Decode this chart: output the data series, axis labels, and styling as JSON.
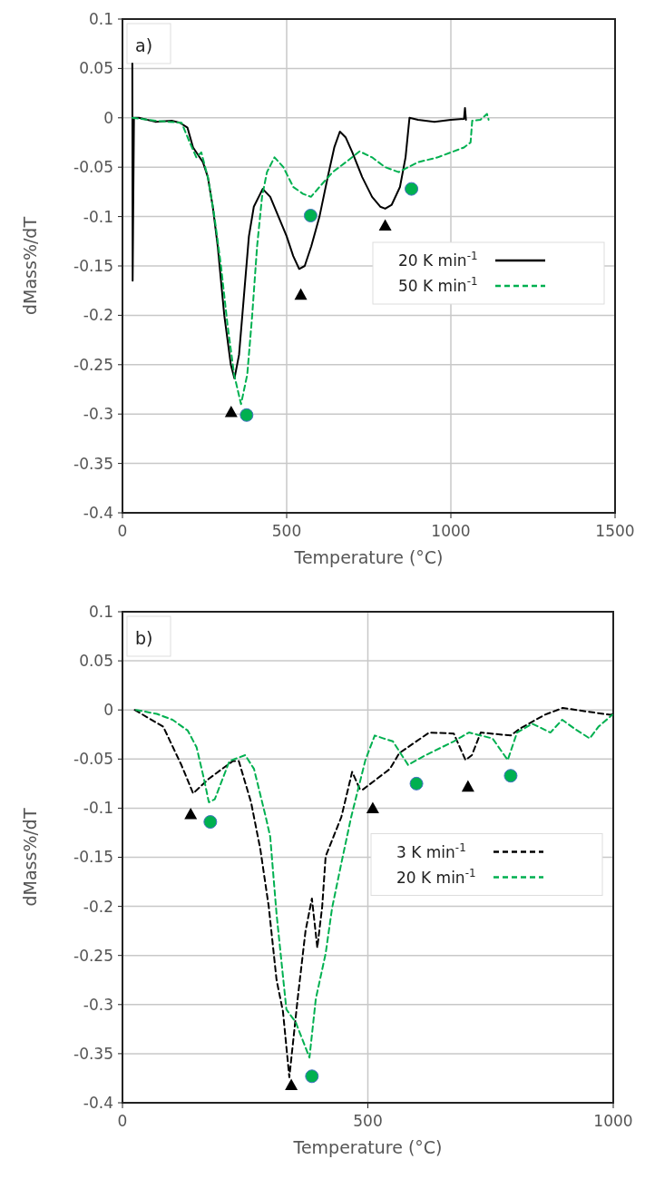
{
  "chart_data": [
    {
      "type": "line",
      "xlabel": "Temperature (°C)",
      "ylabel": "dMass%/dT",
      "xlim": [
        0,
        1500
      ],
      "xticks": [
        0,
        500,
        1000,
        1500
      ],
      "ylim": [
        -0.4,
        0.1
      ],
      "yticks": [
        -0.4,
        -0.35,
        -0.3,
        -0.25,
        -0.2,
        -0.15,
        -0.1,
        -0.05,
        0,
        0.05,
        0.1
      ],
      "grid": true,
      "legend": "right",
      "annotations": [
        "a)"
      ],
      "series": [
        {
          "name": "20 K min$^{-1}$",
          "color": "#000000",
          "line_style": "solid",
          "x": [
            30,
            31,
            35,
            50,
            100,
            150,
            175,
            198,
            215,
            229,
            245,
            260,
            275,
            290,
            310,
            330,
            341,
            355,
            370,
            385,
            400,
            427,
            450,
            475,
            500,
            520,
            538,
            555,
            575,
            600,
            625,
            645,
            662,
            680,
            700,
            730,
            760,
            785,
            800,
            820,
            845,
            862,
            874,
            900,
            950,
            1000,
            1040,
            1043,
            1046
          ],
          "values": [
            0.055,
            -0.165,
            0,
            0,
            -0.004,
            -0.003,
            -0.005,
            -0.01,
            -0.03,
            -0.037,
            -0.045,
            -0.06,
            -0.09,
            -0.13,
            -0.2,
            -0.25,
            -0.264,
            -0.24,
            -0.18,
            -0.12,
            -0.09,
            -0.072,
            -0.08,
            -0.1,
            -0.12,
            -0.14,
            -0.153,
            -0.15,
            -0.13,
            -0.1,
            -0.06,
            -0.03,
            -0.014,
            -0.02,
            -0.035,
            -0.06,
            -0.08,
            -0.09,
            -0.092,
            -0.088,
            -0.07,
            -0.04,
            0,
            -0.002,
            -0.004,
            -0.002,
            -0.001,
            0.01,
            -0.002
          ]
        },
        {
          "name": "50 K min$^{-1}$",
          "color": "#00b050",
          "line_style": "dashed",
          "x": [
            30,
            100,
            180,
            205,
            225,
            240,
            260,
            280,
            300,
            320,
            340,
            361,
            380,
            395,
            410,
            425,
            440,
            463,
            490,
            520,
            550,
            574,
            600,
            640,
            680,
            722,
            760,
            800,
            841,
            870,
            900,
            960,
            1000,
            1040,
            1060,
            1065,
            1090,
            1110,
            1115
          ],
          "values": [
            0,
            -0.003,
            -0.005,
            -0.025,
            -0.04,
            -0.035,
            -0.06,
            -0.1,
            -0.15,
            -0.21,
            -0.26,
            -0.29,
            -0.26,
            -0.2,
            -0.13,
            -0.08,
            -0.055,
            -0.04,
            -0.05,
            -0.07,
            -0.077,
            -0.08,
            -0.07,
            -0.055,
            -0.045,
            -0.034,
            -0.04,
            -0.05,
            -0.055,
            -0.05,
            -0.045,
            -0.04,
            -0.035,
            -0.03,
            -0.025,
            -0.003,
            -0.002,
            0.004,
            -0.002
          ]
        },
        {
          "type": "scatter",
          "marker": "triangle",
          "color": "#000000",
          "x": [
            331,
            543,
            800
          ],
          "values": [
            -0.298,
            -0.179,
            -0.109
          ]
        },
        {
          "type": "scatter",
          "marker": "circle",
          "color": "#00b050",
          "x": [
            378,
            573,
            880
          ],
          "values": [
            -0.301,
            -0.099,
            -0.072
          ]
        }
      ]
    },
    {
      "type": "line",
      "xlabel": "Temperature (°C)",
      "ylabel": "dMass%/dT",
      "xlim": [
        0,
        1000
      ],
      "xticks": [
        0,
        500,
        1000
      ],
      "ylim": [
        -0.4,
        0.1
      ],
      "yticks": [
        -0.4,
        -0.35,
        -0.3,
        -0.25,
        -0.2,
        -0.15,
        -0.1,
        -0.05,
        0,
        0.05,
        0.1
      ],
      "grid": true,
      "legend": "right",
      "annotations": [
        "b)"
      ],
      "series": [
        {
          "name": "3 K min$^{-1}$",
          "color": "#000000",
          "line_style": "dashed",
          "x": [
            25,
            83,
            120,
            144,
            176,
            225,
            237,
            262,
            281,
            298,
            314,
            327,
            340,
            357,
            373,
            386,
            397,
            407,
            414,
            446,
            468,
            484,
            490,
            545,
            564,
            625,
            675,
            699,
            712,
            730,
            791,
            810,
            860,
            897,
            994,
            1000
          ],
          "values": [
            0,
            -0.017,
            -0.056,
            -0.085,
            -0.07,
            -0.052,
            -0.052,
            -0.094,
            -0.142,
            -0.2,
            -0.275,
            -0.307,
            -0.374,
            -0.294,
            -0.225,
            -0.192,
            -0.242,
            -0.2,
            -0.149,
            -0.109,
            -0.063,
            -0.081,
            -0.081,
            -0.06,
            -0.044,
            -0.023,
            -0.024,
            -0.051,
            -0.046,
            -0.023,
            -0.026,
            -0.019,
            -0.005,
            0.002,
            -0.005,
            -0.004
          ]
        },
        {
          "name": "20 K min$^{-1}$",
          "color": "#00b050",
          "line_style": "dashed",
          "x": [
            28,
            70,
            102,
            133,
            151,
            166,
            176,
            188,
            218,
            250,
            268,
            292,
            301,
            314,
            334,
            353,
            381,
            394,
            414,
            427,
            446,
            466,
            495,
            514,
            532,
            551,
            582,
            614,
            675,
            706,
            754,
            785,
            804,
            835,
            872,
            896,
            921,
            952,
            970,
            998
          ],
          "values": [
            0,
            -0.004,
            -0.01,
            -0.021,
            -0.038,
            -0.07,
            -0.094,
            -0.091,
            -0.052,
            -0.046,
            -0.06,
            -0.109,
            -0.129,
            -0.208,
            -0.305,
            -0.318,
            -0.354,
            -0.294,
            -0.248,
            -0.202,
            -0.156,
            -0.109,
            -0.051,
            -0.026,
            -0.029,
            -0.032,
            -0.056,
            -0.047,
            -0.032,
            -0.023,
            -0.029,
            -0.051,
            -0.023,
            -0.014,
            -0.023,
            -0.01,
            -0.019,
            -0.029,
            -0.017,
            -0.005
          ]
        },
        {
          "type": "scatter",
          "marker": "triangle",
          "color": "#000000",
          "x": [
            139,
            510,
            704,
            344
          ],
          "values": [
            -0.106,
            -0.1,
            -0.078,
            -0.382
          ]
        },
        {
          "type": "scatter",
          "marker": "circle",
          "color": "#00b050",
          "x": [
            179,
            599,
            791,
            386
          ],
          "values": [
            -0.114,
            -0.075,
            -0.067,
            -0.373
          ]
        }
      ]
    }
  ]
}
